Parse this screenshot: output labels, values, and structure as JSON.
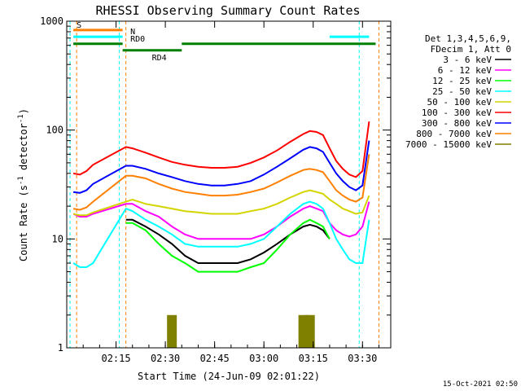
{
  "chart_data": {
    "type": "line",
    "title": "RHESSI Observing Summary Count Rates",
    "xlabel": "Start Time (24-Jun-09 02:01:22)",
    "ylabel_main": "Count Rate (s",
    "ylabel_sup1": "-1",
    "ylabel_mid": " detector",
    "ylabel_sup2": "-1",
    "ylabel_end": ")",
    "yscale": "log",
    "ylim": [
      1,
      1000
    ],
    "xlim": [
      "02:01:22",
      "03:40:00"
    ],
    "x_ticks": [
      "02:15",
      "02:30",
      "02:45",
      "03:00",
      "03:15",
      "03:30"
    ],
    "x_tick_minutes": [
      15,
      30,
      45,
      60,
      75,
      90
    ],
    "y_ticks": [
      "1",
      "10",
      "100",
      "1000"
    ],
    "y_tick_values": [
      1,
      10,
      100,
      1000
    ],
    "legend_header": [
      "Det 1,3,4,5,6,9,",
      "FDecim 1, Att 0"
    ],
    "legend_placement": "right",
    "x_minutes": [
      2,
      4,
      6,
      8,
      18,
      20,
      24,
      28,
      32,
      36,
      40,
      44,
      48,
      52,
      56,
      60,
      64,
      68,
      72,
      74,
      76,
      78,
      80,
      82,
      84,
      86,
      88,
      90,
      92
    ],
    "series": [
      {
        "name": "3 - 6 keV",
        "color": "#000000",
        "values": [
          null,
          null,
          null,
          null,
          15,
          15,
          13,
          11,
          9,
          7,
          6,
          6,
          6,
          6,
          6.5,
          7.5,
          9,
          11,
          13,
          13.5,
          13,
          12,
          10,
          null,
          null,
          null,
          null,
          null,
          null
        ]
      },
      {
        "name": "6 - 12 keV",
        "color": "#ff00ff",
        "values": [
          17,
          16,
          16,
          17,
          21,
          21,
          18,
          16,
          13,
          11,
          10,
          10,
          10,
          10,
          10,
          11,
          13,
          16,
          19,
          20,
          19,
          18,
          14,
          12,
          11,
          10.5,
          11,
          13,
          22
        ]
      },
      {
        "name": "12 - 25 keV",
        "color": "#00ff00",
        "values": [
          null,
          null,
          null,
          null,
          14,
          14,
          12,
          9,
          7,
          6,
          5,
          5,
          5,
          5,
          5.5,
          6,
          8,
          11,
          14,
          15,
          14,
          13,
          10,
          null,
          null,
          null,
          null,
          null,
          null
        ]
      },
      {
        "name": "25 - 50 keV",
        "color": "#00ffff",
        "values": [
          6,
          5.5,
          5.5,
          6,
          19,
          18,
          15,
          13,
          11,
          9,
          8.5,
          8.5,
          8.5,
          8.5,
          9,
          10,
          13,
          17,
          21,
          22,
          21,
          19,
          14,
          10,
          8,
          6.5,
          6,
          6,
          15
        ]
      },
      {
        "name": "50 - 100 keV",
        "color": "#d4d400",
        "values": [
          17,
          16.5,
          16.5,
          17.5,
          22,
          23,
          21,
          20,
          19,
          18,
          17.5,
          17,
          17,
          17,
          18,
          19,
          21,
          24,
          27,
          28,
          27,
          26,
          23,
          21,
          19,
          18,
          17,
          17.5,
          25
        ]
      },
      {
        "name": "100 - 300 keV",
        "color": "#ff0000",
        "values": [
          40,
          39,
          42,
          48,
          70,
          68,
          62,
          56,
          51,
          48,
          46,
          45,
          45,
          46,
          50,
          56,
          65,
          78,
          92,
          98,
          96,
          90,
          68,
          52,
          44,
          39,
          37,
          42,
          120
        ]
      },
      {
        "name": "300 - 800 keV",
        "color": "#0000ff",
        "values": [
          27,
          26.5,
          28,
          32,
          47,
          47,
          44,
          40,
          37,
          34,
          32,
          31,
          31,
          32,
          34,
          39,
          46,
          55,
          66,
          70,
          68,
          63,
          50,
          40,
          34,
          30,
          28,
          31,
          80
        ]
      },
      {
        "name": "800 - 7000 keV",
        "color": "#ff8000",
        "values": [
          19,
          18.5,
          19.5,
          22,
          38,
          38,
          36,
          32,
          29,
          27,
          26,
          25,
          25,
          25.5,
          27,
          29,
          33,
          38,
          43,
          44,
          43,
          41,
          34,
          28,
          25,
          23,
          22,
          24,
          60
        ]
      },
      {
        "name": "7000 - 15000 keV",
        "color": "#808000",
        "values": [
          null,
          null,
          null,
          null,
          null,
          null,
          null,
          1,
          2,
          1,
          null,
          null,
          null,
          null,
          null,
          null,
          null,
          1,
          2,
          2,
          1,
          null,
          null,
          null,
          null,
          null,
          null,
          null,
          1
        ]
      }
    ],
    "top_bars": [
      {
        "label": "S",
        "color": "#ff8000",
        "start": 2,
        "end": 17,
        "level": 830
      },
      {
        "label": "N",
        "color": "#00ffff",
        "start": 2,
        "end": 17,
        "level": 720
      },
      {
        "label": "RD0",
        "color": "#008000",
        "start": 2,
        "end": 17,
        "level": 620
      },
      {
        "label": "RD4",
        "color": "#008000",
        "start": 17,
        "end": 35,
        "level": 540
      },
      {
        "label": "",
        "color": "#008000",
        "start": 35,
        "end": 94,
        "level": 620
      },
      {
        "label": "",
        "color": "#00ffff",
        "start": 80,
        "end": 92,
        "level": 720
      }
    ],
    "saa_intervals": [
      [
        1,
        3
      ],
      [
        16,
        18
      ],
      [
        89,
        95
      ]
    ]
  },
  "timestamp": "15-Oct-2021 02:50"
}
